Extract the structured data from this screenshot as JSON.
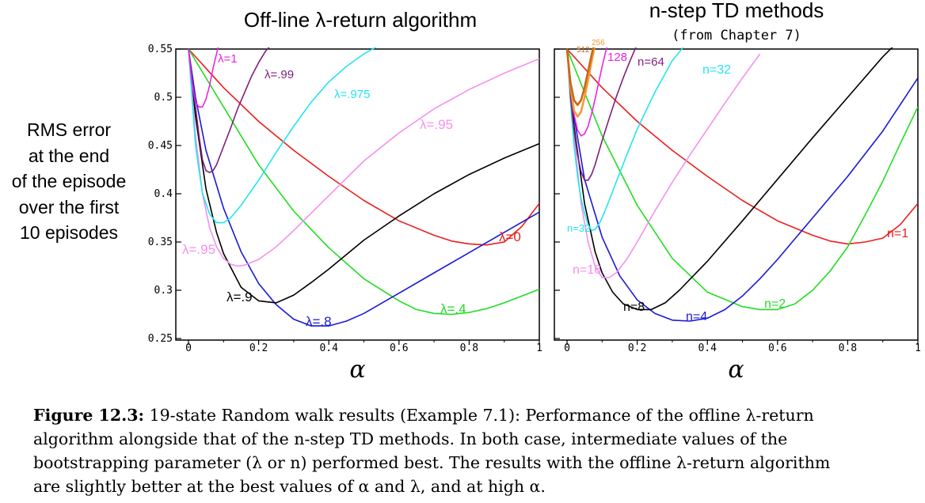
{
  "y_axis_title_lines": [
    "RMS error",
    "at the end",
    "of the episode",
    "over the first",
    "10 episodes"
  ],
  "caption": {
    "label": "Figure 12.3:",
    "lines": [
      "19-state Random walk results (Example 7.1): Performance of the offline λ-return",
      "algorithm alongside that of the n-step TD methods. In both case, intermediate values of the",
      "bootstrapping parameter (λ or n) performed best. The results with the offline λ-return algorithm",
      "are slightly better at the best values of α and λ, and at high α."
    ]
  },
  "chart_data": [
    {
      "type": "line",
      "title": "Off-line λ-return algorithm",
      "subtitle": "",
      "xlabel": "α",
      "ylabel": "",
      "xlim": [
        0,
        1
      ],
      "ylim": [
        0.25,
        0.55
      ],
      "xticks": [
        "0",
        "0.2",
        "0.4",
        "0.6",
        "0.8",
        "1"
      ],
      "yticks": [
        "0.25",
        "0.3",
        "0.35",
        "0.4",
        "0.45",
        "0.5",
        "0.55"
      ],
      "grid": false,
      "series": [
        {
          "name": "λ=0",
          "color": "#e8201c",
          "x": [
            0,
            0.1,
            0.2,
            0.3,
            0.4,
            0.5,
            0.6,
            0.7,
            0.75,
            0.8,
            0.85,
            0.9,
            0.95,
            1.0
          ],
          "y": [
            0.55,
            0.51,
            0.475,
            0.445,
            0.418,
            0.393,
            0.372,
            0.357,
            0.351,
            0.348,
            0.347,
            0.35,
            0.366,
            0.39
          ]
        },
        {
          "name": "λ=.4",
          "color": "#22dd22",
          "x": [
            0,
            0.1,
            0.2,
            0.3,
            0.4,
            0.5,
            0.6,
            0.65,
            0.7,
            0.75,
            0.8,
            0.85,
            0.9,
            1.0
          ],
          "y": [
            0.55,
            0.49,
            0.43,
            0.382,
            0.344,
            0.312,
            0.289,
            0.28,
            0.276,
            0.275,
            0.277,
            0.281,
            0.287,
            0.301
          ]
        },
        {
          "name": "λ=.8",
          "color": "#1a1ad6",
          "x": [
            0,
            0.02,
            0.05,
            0.1,
            0.15,
            0.2,
            0.25,
            0.3,
            0.35,
            0.4,
            0.45,
            0.5,
            0.6,
            0.7,
            0.8,
            0.9,
            1.0
          ],
          "y": [
            0.55,
            0.5,
            0.445,
            0.385,
            0.34,
            0.307,
            0.285,
            0.27,
            0.263,
            0.263,
            0.268,
            0.276,
            0.297,
            0.318,
            0.339,
            0.36,
            0.381
          ]
        },
        {
          "name": "λ=.9",
          "color": "#000000",
          "x": [
            0,
            0.02,
            0.05,
            0.08,
            0.1,
            0.15,
            0.2,
            0.25,
            0.3,
            0.35,
            0.4,
            0.5,
            0.6,
            0.7,
            0.8,
            0.9,
            1.0
          ],
          "y": [
            0.55,
            0.48,
            0.405,
            0.36,
            0.338,
            0.303,
            0.289,
            0.287,
            0.295,
            0.308,
            0.322,
            0.352,
            0.377,
            0.4,
            0.42,
            0.437,
            0.452
          ]
        },
        {
          "name": "λ=.95",
          "color": "#f490ee",
          "x": [
            0,
            0.02,
            0.04,
            0.06,
            0.08,
            0.1,
            0.12,
            0.14,
            0.16,
            0.2,
            0.25,
            0.3,
            0.35,
            0.4,
            0.5,
            0.6,
            0.7,
            0.8,
            0.9,
            1.0
          ],
          "y": [
            0.55,
            0.46,
            0.4,
            0.365,
            0.345,
            0.333,
            0.327,
            0.325,
            0.326,
            0.332,
            0.345,
            0.362,
            0.38,
            0.398,
            0.434,
            0.463,
            0.488,
            0.508,
            0.525,
            0.54
          ]
        },
        {
          "name": "λ=.975",
          "color": "#22e5ee",
          "x": [
            0,
            0.02,
            0.04,
            0.06,
            0.08,
            0.1,
            0.12,
            0.15,
            0.2,
            0.25,
            0.3,
            0.35,
            0.4,
            0.45,
            0.5,
            0.55
          ],
          "y": [
            0.55,
            0.45,
            0.4,
            0.379,
            0.37,
            0.37,
            0.375,
            0.388,
            0.414,
            0.443,
            0.47,
            0.495,
            0.516,
            0.532,
            0.545,
            0.555
          ]
        },
        {
          "name": "λ=.99",
          "color": "#7f1f7f",
          "x": [
            0,
            0.01,
            0.02,
            0.03,
            0.04,
            0.05,
            0.06,
            0.07,
            0.08,
            0.1,
            0.12,
            0.14,
            0.16,
            0.18,
            0.2,
            0.22,
            0.25
          ],
          "y": [
            0.55,
            0.52,
            0.49,
            0.46,
            0.435,
            0.424,
            0.422,
            0.424,
            0.43,
            0.449,
            0.468,
            0.488,
            0.505,
            0.522,
            0.536,
            0.548,
            0.56
          ]
        },
        {
          "name": "λ=1",
          "color": "#ee22e6",
          "x": [
            0,
            0.01,
            0.02,
            0.03,
            0.04,
            0.05,
            0.06,
            0.07,
            0.08,
            0.09
          ],
          "y": [
            0.55,
            0.515,
            0.495,
            0.49,
            0.49,
            0.498,
            0.512,
            0.53,
            0.545,
            0.56
          ]
        }
      ],
      "annotations": [
        "λ=1",
        "λ=.99",
        "λ=.975",
        "λ=.95",
        "λ=.95",
        "λ=0",
        "λ=.9",
        "λ=.8",
        "λ=.4"
      ]
    },
    {
      "type": "line",
      "title": "n-step TD methods",
      "subtitle": "(from Chapter 7)",
      "xlabel": "α",
      "ylabel": "",
      "xlim": [
        0,
        1
      ],
      "ylim": [
        0.25,
        0.55
      ],
      "xticks": [
        "0",
        "0.2",
        "0.4",
        "0.6",
        "0.8",
        "1"
      ],
      "yticks": [],
      "grid": false,
      "series": [
        {
          "name": "n=1",
          "color": "#e8201c",
          "x": [
            0,
            0.1,
            0.2,
            0.3,
            0.4,
            0.5,
            0.6,
            0.7,
            0.75,
            0.8,
            0.85,
            0.9,
            0.95,
            1.0
          ],
          "y": [
            0.55,
            0.51,
            0.475,
            0.445,
            0.418,
            0.393,
            0.372,
            0.357,
            0.351,
            0.348,
            0.35,
            0.354,
            0.368,
            0.39
          ]
        },
        {
          "name": "n=2",
          "color": "#22dd22",
          "x": [
            0,
            0.1,
            0.2,
            0.3,
            0.4,
            0.5,
            0.55,
            0.6,
            0.65,
            0.7,
            0.75,
            0.8,
            0.85,
            0.9,
            0.95,
            1.0
          ],
          "y": [
            0.55,
            0.46,
            0.388,
            0.333,
            0.298,
            0.283,
            0.28,
            0.28,
            0.286,
            0.3,
            0.32,
            0.345,
            0.378,
            0.413,
            0.452,
            0.49
          ]
        },
        {
          "name": "n=4",
          "color": "#1a1ad6",
          "x": [
            0,
            0.02,
            0.05,
            0.1,
            0.15,
            0.2,
            0.25,
            0.3,
            0.35,
            0.4,
            0.45,
            0.5,
            0.55,
            0.6,
            0.7,
            0.8,
            0.9,
            1.0
          ],
          "y": [
            0.55,
            0.48,
            0.415,
            0.355,
            0.315,
            0.29,
            0.276,
            0.269,
            0.268,
            0.271,
            0.28,
            0.294,
            0.312,
            0.332,
            0.375,
            0.418,
            0.465,
            0.52
          ]
        },
        {
          "name": "n=8",
          "color": "#000000",
          "x": [
            0,
            0.02,
            0.05,
            0.08,
            0.1,
            0.13,
            0.16,
            0.2,
            0.24,
            0.28,
            0.32,
            0.4,
            0.5,
            0.6,
            0.7,
            0.8,
            0.9,
            0.95
          ],
          "y": [
            0.55,
            0.47,
            0.39,
            0.34,
            0.318,
            0.298,
            0.286,
            0.28,
            0.28,
            0.287,
            0.3,
            0.33,
            0.372,
            0.415,
            0.458,
            0.5,
            0.542,
            0.56
          ]
        },
        {
          "name": "n=16",
          "color": "#f490ee",
          "x": [
            0,
            0.02,
            0.04,
            0.06,
            0.08,
            0.1,
            0.12,
            0.14,
            0.17,
            0.2,
            0.25,
            0.3,
            0.35,
            0.4,
            0.45,
            0.5,
            0.55
          ],
          "y": [
            0.55,
            0.46,
            0.39,
            0.35,
            0.325,
            0.313,
            0.313,
            0.318,
            0.332,
            0.35,
            0.382,
            0.412,
            0.44,
            0.467,
            0.494,
            0.52,
            0.545
          ]
        },
        {
          "name": "n=32",
          "color": "#22e5ee",
          "x": [
            0,
            0.01,
            0.02,
            0.03,
            0.04,
            0.05,
            0.06,
            0.07,
            0.08,
            0.09,
            0.1,
            0.12,
            0.14,
            0.17,
            0.2,
            0.25,
            0.3,
            0.35
          ],
          "y": [
            0.55,
            0.495,
            0.45,
            0.418,
            0.395,
            0.38,
            0.368,
            0.362,
            0.363,
            0.368,
            0.375,
            0.393,
            0.412,
            0.44,
            0.467,
            0.505,
            0.538,
            0.56
          ]
        },
        {
          "name": "n=64",
          "color": "#7f1f7f",
          "x": [
            0,
            0.01,
            0.02,
            0.03,
            0.04,
            0.05,
            0.06,
            0.07,
            0.08,
            0.1,
            0.12,
            0.14,
            0.16,
            0.18,
            0.2
          ],
          "y": [
            0.55,
            0.5,
            0.465,
            0.44,
            0.423,
            0.414,
            0.414,
            0.42,
            0.43,
            0.455,
            0.478,
            0.5,
            0.52,
            0.538,
            0.555
          ]
        },
        {
          "name": "n=128",
          "color": "#ee22e6",
          "x": [
            0,
            0.01,
            0.02,
            0.03,
            0.04,
            0.05,
            0.06,
            0.07,
            0.08,
            0.09,
            0.1,
            0.11,
            0.12
          ],
          "y": [
            0.55,
            0.51,
            0.482,
            0.466,
            0.46,
            0.462,
            0.47,
            0.483,
            0.498,
            0.515,
            0.532,
            0.547,
            0.56
          ]
        },
        {
          "name": "n=256",
          "color": "#f39a36",
          "x": [
            0,
            0.01,
            0.02,
            0.03,
            0.04,
            0.05,
            0.06,
            0.07,
            0.08
          ],
          "y": [
            0.55,
            0.51,
            0.486,
            0.48,
            0.485,
            0.5,
            0.518,
            0.537,
            0.555
          ]
        },
        {
          "name": "n=512",
          "color": "#c86a16",
          "x": [
            0,
            0.01,
            0.02,
            0.03,
            0.04,
            0.05,
            0.06,
            0.07,
            0.08
          ],
          "y": [
            0.55,
            0.515,
            0.497,
            0.492,
            0.497,
            0.51,
            0.527,
            0.544,
            0.56
          ]
        }
      ],
      "annotations": [
        "512",
        "256",
        "128",
        "n=64",
        "n=32",
        "n=32",
        "n=16",
        "n=8",
        "n=4",
        "n=2",
        "n=1"
      ]
    }
  ]
}
